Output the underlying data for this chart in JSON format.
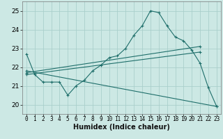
{
  "xlabel": "Humidex (Indice chaleur)",
  "ylabel": "",
  "bg_color": "#cce8e4",
  "grid_color": "#aacfcb",
  "line_color": "#1e6e6a",
  "xlim": [
    -0.5,
    23.5
  ],
  "ylim": [
    19.5,
    25.5
  ],
  "yticks": [
    20,
    21,
    22,
    23,
    24,
    25
  ],
  "xticks": [
    0,
    1,
    2,
    3,
    4,
    5,
    6,
    7,
    8,
    9,
    10,
    11,
    12,
    13,
    14,
    15,
    16,
    17,
    18,
    19,
    20,
    21,
    22,
    23
  ],
  "series1_x": [
    0,
    1,
    2,
    3,
    4,
    5,
    6,
    7,
    8,
    9,
    10,
    11,
    12,
    13,
    14,
    15,
    16,
    17,
    18,
    19,
    20,
    21,
    22,
    23
  ],
  "series1_y": [
    22.7,
    21.6,
    21.2,
    21.2,
    21.2,
    20.5,
    21.0,
    21.3,
    21.8,
    22.1,
    22.5,
    22.6,
    23.0,
    23.7,
    24.2,
    25.0,
    24.9,
    24.2,
    23.6,
    23.4,
    22.9,
    22.2,
    20.9,
    19.9
  ],
  "series2_x": [
    0,
    21
  ],
  "series2_y": [
    21.6,
    22.8
  ],
  "series3_x": [
    0,
    21
  ],
  "series3_y": [
    21.7,
    23.1
  ],
  "series4_x": [
    0,
    23
  ],
  "series4_y": [
    21.8,
    19.9
  ]
}
